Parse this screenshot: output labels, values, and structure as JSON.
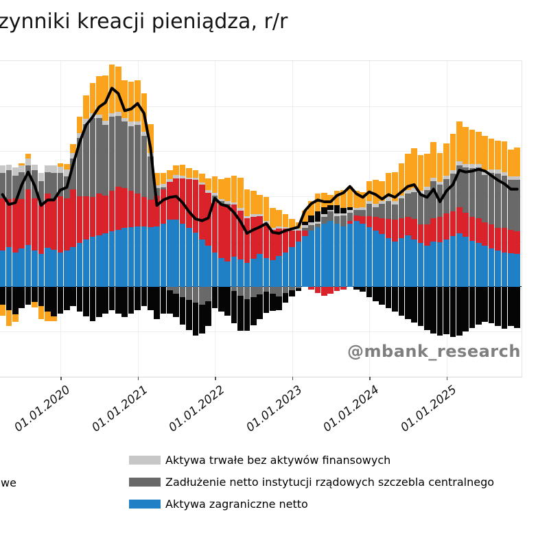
{
  "title": "zynniki kreacji pieniądza, r/r",
  "watermark": "@mbank_research",
  "legend": {
    "cropped_left_fragment": "we",
    "items": [
      {
        "label": "Aktywa trwałe bez aktywów finansowych",
        "color": "#c7c7c7"
      },
      {
        "label": "Zadłużenie netto instytucji rządowych szczebla centralnego",
        "color": "#696969"
      },
      {
        "label": "Aktywa zagraniczne netto",
        "color": "#1f80c5"
      }
    ]
  },
  "ui_colors": {
    "background": "#ffffff",
    "gridline": "#eeeeee",
    "plot_border": "#e3e3e3",
    "zero_line": "#000000",
    "line": "#000000",
    "title_text": "#141414",
    "tick_text": "#111111",
    "watermark_text": "#7f7f7f"
  },
  "chart_data": {
    "type": "bar",
    "subtype": "stacked-bars-with-sum-line",
    "x_start": "2019-04",
    "x_freq": "monthly",
    "x_count": 81,
    "x_tick_labels": [
      "01.01.2020",
      "01.01.2021",
      "01.01.2022",
      "01.01.2023",
      "01.01.2024",
      "01.01.2025"
    ],
    "ylim": [
      -10,
      25
    ],
    "y_gridline_step": 5,
    "y_axis_labels_visible": false,
    "grid": true,
    "legend_position": "bottom",
    "series": [
      {
        "id": "aktywa-zagraniczne-netto",
        "legend_label": "Aktywa zagraniczne netto",
        "color": "#1f80c5",
        "values": [
          4.0,
          4.4,
          3.8,
          4.2,
          4.6,
          4.0,
          3.6,
          4.3,
          4.1,
          3.8,
          4.0,
          4.4,
          4.8,
          5.2,
          5.5,
          5.7,
          5.9,
          6.1,
          6.3,
          6.5,
          6.6,
          6.7,
          6.7,
          6.6,
          6.7,
          7.0,
          7.4,
          7.4,
          7.0,
          6.5,
          6.0,
          5.2,
          4.5,
          3.8,
          3.2,
          2.8,
          3.3,
          3.0,
          2.6,
          3.1,
          3.6,
          3.2,
          2.9,
          3.4,
          3.8,
          4.4,
          5.0,
          5.6,
          6.2,
          6.6,
          7.0,
          7.3,
          7.0,
          6.7,
          7.0,
          7.3,
          7.0,
          6.6,
          6.2,
          5.8,
          5.4,
          5.0,
          5.4,
          5.7,
          5.2,
          4.8,
          4.5,
          5.0,
          4.9,
          5.2,
          5.6,
          5.9,
          5.5,
          5.1,
          4.8,
          4.5,
          4.2,
          4.0,
          3.8,
          3.7,
          3.6
        ]
      },
      {
        "id": "series-red",
        "legend_label": null,
        "color": "#da222a",
        "values": [
          5.8,
          5.3,
          6.0,
          5.5,
          6.2,
          5.8,
          5.4,
          6.0,
          5.6,
          6.2,
          5.8,
          6.4,
          5.2,
          4.8,
          4.4,
          4.6,
          4.2,
          4.5,
          4.8,
          4.4,
          4.0,
          3.6,
          3.2,
          3.0,
          3.4,
          3.8,
          4.2,
          4.6,
          5.0,
          5.4,
          5.8,
          6.1,
          5.9,
          5.6,
          5.9,
          6.2,
          5.8,
          5.4,
          5.0,
          4.6,
          4.2,
          3.8,
          3.4,
          3.0,
          2.6,
          1.8,
          1.2,
          0.6,
          -0.3,
          -0.7,
          -1.0,
          -0.8,
          -0.5,
          -0.3,
          0.3,
          0.6,
          0.8,
          1.2,
          1.5,
          1.8,
          2.1,
          2.4,
          2.2,
          2.0,
          2.3,
          2.1,
          2.4,
          2.6,
          2.8,
          2.9,
          2.7,
          2.9,
          2.7,
          2.6,
          2.8,
          2.6,
          2.7,
          2.5,
          2.7,
          2.6,
          2.5
        ]
      },
      {
        "id": "zadluzenie-netto-instytucji-rzadowych",
        "legend_label": "Zadłużenie netto instytucji rządowych szczebla centralnego",
        "color": "#696969",
        "values": [
          2.8,
          3.2,
          2.5,
          3.0,
          2.6,
          3.1,
          2.7,
          2.4,
          2.9,
          2.6,
          2.4,
          3.4,
          6.5,
          8.0,
          8.8,
          8.4,
          7.8,
          8.2,
          7.8,
          7.4,
          7.2,
          7.6,
          6.8,
          4.8,
          0.8,
          0.2,
          -0.4,
          -0.8,
          -1.2,
          -1.5,
          -1.8,
          -2.0,
          -1.6,
          0.7,
          0.4,
          0.2,
          -0.5,
          -1.0,
          -1.4,
          -1.2,
          -0.9,
          -0.6,
          -0.8,
          -1.1,
          -0.7,
          -0.4,
          -0.2,
          0.3,
          0.6,
          0.4,
          0.7,
          1.0,
          0.8,
          1.2,
          0.9,
          0.6,
          0.7,
          1.4,
          1.1,
          1.6,
          2.0,
          1.7,
          2.2,
          2.6,
          3.0,
          3.4,
          3.8,
          4.1,
          3.6,
          3.8,
          4.2,
          4.6,
          5.0,
          5.4,
          5.6,
          5.3,
          5.7,
          6.0,
          5.8,
          5.5,
          5.7
        ]
      },
      {
        "id": "aktywa-trwale-bez-aktywow-finansowych",
        "legend_label": "Aktywa trwałe bez aktywów finansowych",
        "color": "#c7c7c7",
        "values": [
          0.8,
          0.6,
          0.9,
          0.7,
          0.8,
          0.6,
          0.9,
          0.7,
          0.8,
          0.7,
          0.8,
          0.6,
          0.5,
          0.6,
          0.5,
          0.4,
          0.5,
          0.4,
          0.5,
          0.4,
          0.5,
          0.4,
          0.5,
          0.4,
          0.3,
          0.4,
          0.3,
          0.4,
          0.3,
          0.2,
          0.3,
          0.2,
          0.3,
          0.3,
          0.2,
          0.3,
          0.2,
          0.3,
          0.2,
          0.3,
          0.2,
          0.3,
          0.2,
          0.3,
          0.2,
          0.3,
          0.2,
          0.3,
          0.3,
          0.2,
          0.3,
          0.2,
          0.3,
          0.2,
          0.3,
          0.2,
          0.3,
          0.3,
          0.4,
          0.3,
          0.4,
          0.4,
          0.3,
          0.4,
          0.4,
          0.3,
          0.4,
          0.4,
          0.3,
          0.4,
          0.4,
          0.5,
          0.4,
          0.5,
          0.4,
          0.5,
          0.4,
          0.5,
          0.4,
          0.4,
          0.4
        ]
      },
      {
        "id": "series-black",
        "legend_label": null,
        "color": "#050505",
        "values": [
          -2.0,
          -2.6,
          -3.1,
          -2.4,
          -2.0,
          -1.7,
          -2.2,
          -2.8,
          -3.3,
          -3.0,
          -2.6,
          -2.2,
          -2.8,
          -3.3,
          -3.8,
          -3.4,
          -3.0,
          -2.6,
          -3.0,
          -3.4,
          -3.0,
          -2.6,
          -2.2,
          -2.6,
          -3.6,
          -3.0,
          -2.6,
          -2.6,
          -3.0,
          -3.3,
          -3.6,
          -3.2,
          -2.8,
          -2.4,
          -2.8,
          -3.2,
          -3.6,
          -3.9,
          -3.5,
          -3.1,
          -2.7,
          -2.3,
          -1.9,
          -1.5,
          -1.1,
          -0.7,
          -0.3,
          0.4,
          0.8,
          1.1,
          0.8,
          0.5,
          0.9,
          0.6,
          0.3,
          -0.3,
          -0.6,
          -1.2,
          -1.6,
          -2.0,
          -2.4,
          -2.8,
          -3.2,
          -3.6,
          -4.0,
          -4.4,
          -4.8,
          -5.2,
          -5.4,
          -5.3,
          -5.6,
          -5.4,
          -5.0,
          -4.6,
          -4.2,
          -3.9,
          -4.1,
          -4.4,
          -4.7,
          -4.4,
          -4.6
        ]
      },
      {
        "id": "series-orange",
        "legend_label": null,
        "color": "#fba31c",
        "values": [
          -1.2,
          -1.8,
          -0.8,
          0.3,
          0.5,
          -0.6,
          -1.4,
          -1.0,
          -0.5,
          0.4,
          0.6,
          1.0,
          1.8,
          2.6,
          3.4,
          4.2,
          5.0,
          5.4,
          5.0,
          4.2,
          4.4,
          4.6,
          4.2,
          3.2,
          1.4,
          1.2,
          1.0,
          1.0,
          1.2,
          1.0,
          0.8,
          1.0,
          1.3,
          1.8,
          2.2,
          2.6,
          3.0,
          3.4,
          3.0,
          2.6,
          2.2,
          2.6,
          2.2,
          1.8,
          1.4,
          1.0,
          0.7,
          1.2,
          1.6,
          2.0,
          1.6,
          1.2,
          1.6,
          2.0,
          2.3,
          1.9,
          1.7,
          2.2,
          2.6,
          2.2,
          2.7,
          3.2,
          3.6,
          4.0,
          4.4,
          4.0,
          3.6,
          3.9,
          3.2,
          3.6,
          4.0,
          4.4,
          4.1,
          3.8,
          3.6,
          3.8,
          3.4,
          3.2,
          3.4,
          3.0,
          3.2
        ]
      }
    ],
    "line": {
      "id": "sum-line",
      "color": "#000000",
      "derivation": "sum of all stacked series per month (money growth r/r)"
    }
  }
}
